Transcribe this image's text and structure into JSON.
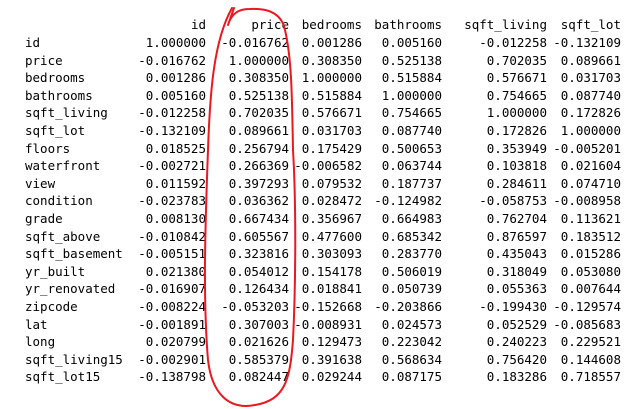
{
  "columns": [
    "id",
    "price",
    "bedrooms",
    "bathrooms",
    "sqft_living",
    "sqft_lot"
  ],
  "rows": [
    {
      "label": "id",
      "values": [
        "1.000000",
        "-0.016762",
        "0.001286",
        "0.005160",
        "-0.012258",
        "-0.132109"
      ]
    },
    {
      "label": "price",
      "values": [
        "-0.016762",
        "1.000000",
        "0.308350",
        "0.525138",
        "0.702035",
        "0.089661"
      ]
    },
    {
      "label": "bedrooms",
      "values": [
        "0.001286",
        "0.308350",
        "1.000000",
        "0.515884",
        "0.576671",
        "0.031703"
      ]
    },
    {
      "label": "bathrooms",
      "values": [
        "0.005160",
        "0.525138",
        "0.515884",
        "1.000000",
        "0.754665",
        "0.087740"
      ]
    },
    {
      "label": "sqft_living",
      "values": [
        "-0.012258",
        "0.702035",
        "0.576671",
        "0.754665",
        "1.000000",
        "0.172826"
      ]
    },
    {
      "label": "sqft_lot",
      "values": [
        "-0.132109",
        "0.089661",
        "0.031703",
        "0.087740",
        "0.172826",
        "1.000000"
      ]
    },
    {
      "label": "floors",
      "values": [
        "0.018525",
        "0.256794",
        "0.175429",
        "0.500653",
        "0.353949",
        "-0.005201"
      ]
    },
    {
      "label": "waterfront",
      "values": [
        "-0.002721",
        "0.266369",
        "-0.006582",
        "0.063744",
        "0.103818",
        "0.021604"
      ]
    },
    {
      "label": "view",
      "values": [
        "0.011592",
        "0.397293",
        "0.079532",
        "0.187737",
        "0.284611",
        "0.074710"
      ]
    },
    {
      "label": "condition",
      "values": [
        "-0.023783",
        "0.036362",
        "0.028472",
        "-0.124982",
        "-0.058753",
        "-0.008958"
      ]
    },
    {
      "label": "grade",
      "values": [
        "0.008130",
        "0.667434",
        "0.356967",
        "0.664983",
        "0.762704",
        "0.113621"
      ]
    },
    {
      "label": "sqft_above",
      "values": [
        "-0.010842",
        "0.605567",
        "0.477600",
        "0.685342",
        "0.876597",
        "0.183512"
      ]
    },
    {
      "label": "sqft_basement",
      "values": [
        "-0.005151",
        "0.323816",
        "0.303093",
        "0.283770",
        "0.435043",
        "0.015286"
      ]
    },
    {
      "label": "yr_built",
      "values": [
        "0.021380",
        "0.054012",
        "0.154178",
        "0.506019",
        "0.318049",
        "0.053080"
      ]
    },
    {
      "label": "yr_renovated",
      "values": [
        "-0.016907",
        "0.126434",
        "0.018841",
        "0.050739",
        "0.055363",
        "0.007644"
      ]
    },
    {
      "label": "zipcode",
      "values": [
        "-0.008224",
        "-0.053203",
        "-0.152668",
        "-0.203866",
        "-0.199430",
        "-0.129574"
      ]
    },
    {
      "label": "lat",
      "values": [
        "-0.001891",
        "0.307003",
        "-0.008931",
        "0.024573",
        "0.052529",
        "-0.085683"
      ]
    },
    {
      "label": "long",
      "values": [
        "0.020799",
        "0.021626",
        "0.129473",
        "0.223042",
        "0.240223",
        "0.229521"
      ]
    },
    {
      "label": "sqft_living15",
      "values": [
        "-0.002901",
        "0.585379",
        "0.391638",
        "0.568634",
        "0.756420",
        "0.144608"
      ]
    },
    {
      "label": "sqft_lot15",
      "values": [
        "-0.138798",
        "0.082447",
        "0.029244",
        "0.087175",
        "0.183286",
        "0.718557"
      ]
    }
  ],
  "annotation": {
    "stroke_color": "#e8191f"
  }
}
